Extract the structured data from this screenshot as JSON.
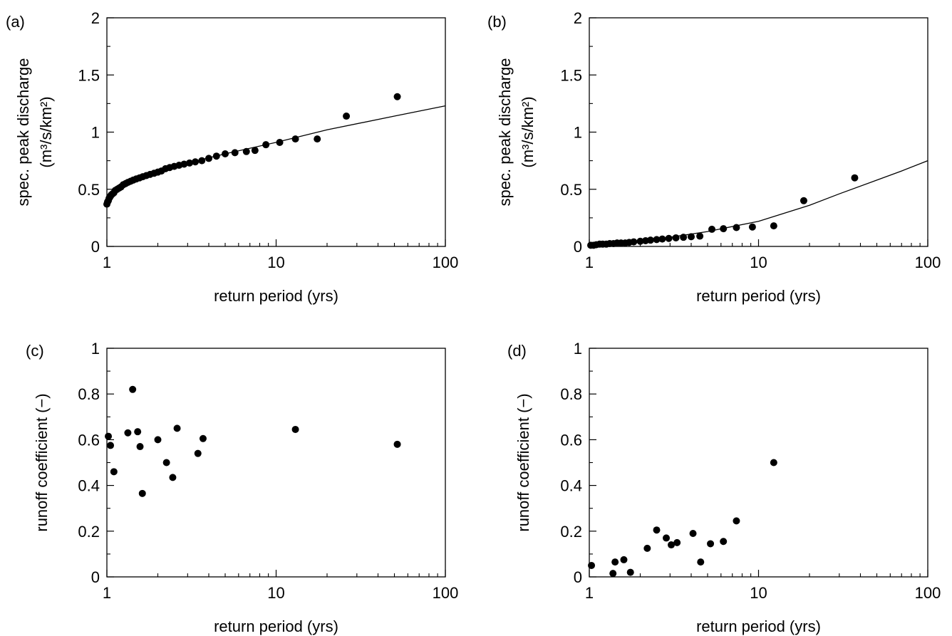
{
  "chart_data": [
    {
      "panel_label": "(a)",
      "type": "scatter",
      "x_scale": "log",
      "xlim": [
        1,
        100
      ],
      "ylim": [
        0,
        2
      ],
      "xticks": [
        "1",
        "10",
        "100"
      ],
      "yticks": [
        "0",
        "0.5",
        "1",
        "1.5",
        "2"
      ],
      "xlabel": "return period (yrs)",
      "ylabel_line1": "spec. peak discharge",
      "ylabel_line2": "(m³/s/km²)",
      "grid": false,
      "points": [
        [
          1.0,
          0.37
        ],
        [
          1.01,
          0.39
        ],
        [
          1.02,
          0.4
        ],
        [
          1.03,
          0.42
        ],
        [
          1.04,
          0.43
        ],
        [
          1.05,
          0.44
        ],
        [
          1.06,
          0.45
        ],
        [
          1.08,
          0.46
        ],
        [
          1.1,
          0.47
        ],
        [
          1.12,
          0.49
        ],
        [
          1.15,
          0.5
        ],
        [
          1.18,
          0.51
        ],
        [
          1.21,
          0.52
        ],
        [
          1.25,
          0.54
        ],
        [
          1.29,
          0.55
        ],
        [
          1.33,
          0.56
        ],
        [
          1.38,
          0.57
        ],
        [
          1.43,
          0.58
        ],
        [
          1.49,
          0.59
        ],
        [
          1.56,
          0.6
        ],
        [
          1.63,
          0.61
        ],
        [
          1.71,
          0.62
        ],
        [
          1.8,
          0.63
        ],
        [
          1.9,
          0.64
        ],
        [
          2.0,
          0.65
        ],
        [
          2.1,
          0.66
        ],
        [
          2.22,
          0.68
        ],
        [
          2.35,
          0.69
        ],
        [
          2.5,
          0.7
        ],
        [
          2.67,
          0.71
        ],
        [
          2.86,
          0.72
        ],
        [
          3.08,
          0.73
        ],
        [
          3.33,
          0.74
        ],
        [
          3.64,
          0.75
        ],
        [
          4.0,
          0.77
        ],
        [
          4.44,
          0.79
        ],
        [
          5.0,
          0.81
        ],
        [
          5.71,
          0.82
        ],
        [
          6.67,
          0.83
        ],
        [
          7.5,
          0.84
        ],
        [
          8.7,
          0.89
        ],
        [
          10.5,
          0.91
        ],
        [
          13.0,
          0.94
        ],
        [
          17.5,
          0.94
        ],
        [
          26.0,
          1.14
        ],
        [
          52.0,
          1.31
        ]
      ],
      "fit_line": [
        [
          1,
          0.37
        ],
        [
          1.05,
          0.44
        ],
        [
          1.1,
          0.47
        ],
        [
          1.2,
          0.52
        ],
        [
          1.3,
          0.55
        ],
        [
          1.5,
          0.59
        ],
        [
          2,
          0.65
        ],
        [
          3,
          0.73
        ],
        [
          5,
          0.81
        ],
        [
          10,
          0.91
        ],
        [
          20,
          1.02
        ],
        [
          50,
          1.14
        ],
        [
          100,
          1.23
        ]
      ]
    },
    {
      "panel_label": "(b)",
      "type": "scatter",
      "x_scale": "log",
      "xlim": [
        1,
        100
      ],
      "ylim": [
        0,
        2
      ],
      "xticks": [
        "1",
        "10",
        "100"
      ],
      "yticks": [
        "0",
        "0.5",
        "1",
        "1.5",
        "2"
      ],
      "xlabel": "return period (yrs)",
      "ylabel_line1": "spec. peak discharge",
      "ylabel_line2": "(m³/s/km²)",
      "grid": false,
      "points": [
        [
          1.02,
          0.01
        ],
        [
          1.06,
          0.01
        ],
        [
          1.1,
          0.015
        ],
        [
          1.15,
          0.02
        ],
        [
          1.2,
          0.02
        ],
        [
          1.26,
          0.02
        ],
        [
          1.32,
          0.025
        ],
        [
          1.39,
          0.025
        ],
        [
          1.46,
          0.03
        ],
        [
          1.54,
          0.03
        ],
        [
          1.63,
          0.03
        ],
        [
          1.72,
          0.035
        ],
        [
          1.83,
          0.04
        ],
        [
          2.0,
          0.045
        ],
        [
          2.15,
          0.05
        ],
        [
          2.3,
          0.055
        ],
        [
          2.5,
          0.06
        ],
        [
          2.7,
          0.065
        ],
        [
          2.95,
          0.07
        ],
        [
          3.25,
          0.075
        ],
        [
          3.6,
          0.08
        ],
        [
          4.0,
          0.085
        ],
        [
          4.5,
          0.09
        ],
        [
          5.3,
          0.15
        ],
        [
          6.2,
          0.155
        ],
        [
          7.4,
          0.165
        ],
        [
          9.2,
          0.17
        ],
        [
          12.3,
          0.18
        ],
        [
          18.5,
          0.4
        ],
        [
          37.0,
          0.6
        ]
      ],
      "fit_line": [
        [
          1,
          0.02
        ],
        [
          2,
          0.05
        ],
        [
          3,
          0.08
        ],
        [
          5,
          0.13
        ],
        [
          10,
          0.22
        ],
        [
          20,
          0.36
        ],
        [
          30,
          0.46
        ],
        [
          50,
          0.58
        ],
        [
          70,
          0.66
        ],
        [
          100,
          0.75
        ]
      ]
    },
    {
      "panel_label": "(c)",
      "type": "scatter",
      "x_scale": "log",
      "xlim": [
        1,
        100
      ],
      "ylim": [
        0,
        1
      ],
      "xticks": [
        "1",
        "10",
        "100"
      ],
      "yticks": [
        "0",
        "0.2",
        "0.4",
        "0.6",
        "0.8",
        "1"
      ],
      "xlabel": "return period (yrs)",
      "ylabel_line1": "runoff coefficient (−)",
      "grid": false,
      "points": [
        [
          1.02,
          0.615
        ],
        [
          1.05,
          0.575
        ],
        [
          1.1,
          0.46
        ],
        [
          1.33,
          0.63
        ],
        [
          1.42,
          0.82
        ],
        [
          1.52,
          0.635
        ],
        [
          1.57,
          0.57
        ],
        [
          1.62,
          0.365
        ],
        [
          2.0,
          0.6
        ],
        [
          2.25,
          0.5
        ],
        [
          2.45,
          0.435
        ],
        [
          2.6,
          0.65
        ],
        [
          3.45,
          0.54
        ],
        [
          3.7,
          0.605
        ],
        [
          13.0,
          0.645
        ],
        [
          52.0,
          0.58
        ]
      ]
    },
    {
      "panel_label": "(d)",
      "type": "scatter",
      "x_scale": "log",
      "xlim": [
        1,
        100
      ],
      "ylim": [
        0,
        1
      ],
      "xticks": [
        "1",
        "10",
        "100"
      ],
      "yticks": [
        "0",
        "0.2",
        "0.4",
        "0.6",
        "0.8",
        "1"
      ],
      "xlabel": "return period (yrs)",
      "ylabel_line1": "runoff coefficient (−)",
      "grid": false,
      "points": [
        [
          1.03,
          0.05
        ],
        [
          1.38,
          0.015
        ],
        [
          1.42,
          0.065
        ],
        [
          1.6,
          0.075
        ],
        [
          1.75,
          0.02
        ],
        [
          2.2,
          0.125
        ],
        [
          2.5,
          0.205
        ],
        [
          2.85,
          0.17
        ],
        [
          3.05,
          0.14
        ],
        [
          3.3,
          0.15
        ],
        [
          4.1,
          0.19
        ],
        [
          4.55,
          0.065
        ],
        [
          5.2,
          0.145
        ],
        [
          6.2,
          0.155
        ],
        [
          7.4,
          0.245
        ],
        [
          12.3,
          0.5
        ]
      ]
    }
  ]
}
